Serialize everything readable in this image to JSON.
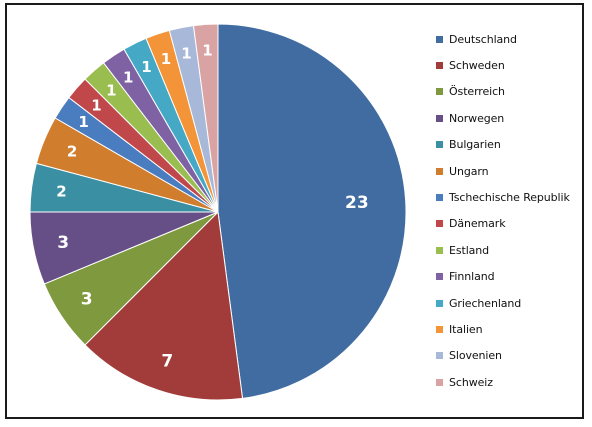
{
  "chart_data": {
    "type": "pie",
    "title": "",
    "categories": [
      "Deutschland",
      "Schweden",
      "Österreich",
      "Norwegen",
      "Bulgarien",
      "Ungarn",
      "Tschechische Republik",
      "Dänemark",
      "Estland",
      "Finnland",
      "Griechenland",
      "Italien",
      "Slovenien",
      "Schweiz"
    ],
    "values": [
      23,
      7,
      3,
      3,
      2,
      2,
      1,
      1,
      1,
      1,
      1,
      1,
      1,
      1
    ],
    "data_labels": [
      "23",
      "7",
      "3",
      "3",
      "2",
      "2",
      "1",
      "1",
      "1",
      "1",
      "1",
      "1",
      "1",
      "1"
    ],
    "colors": [
      "#416ca1",
      "#a23c3a",
      "#7f9a3e",
      "#664e86",
      "#3b8fa3",
      "#d07d2e",
      "#4a7cc0",
      "#c0474a",
      "#99bd4f",
      "#7e62a4",
      "#45a9c6",
      "#f39438",
      "#a8b8d8",
      "#daa3a3"
    ],
    "legend_position": "right",
    "start_angle": "12 o'clock",
    "direction": "clockwise"
  }
}
